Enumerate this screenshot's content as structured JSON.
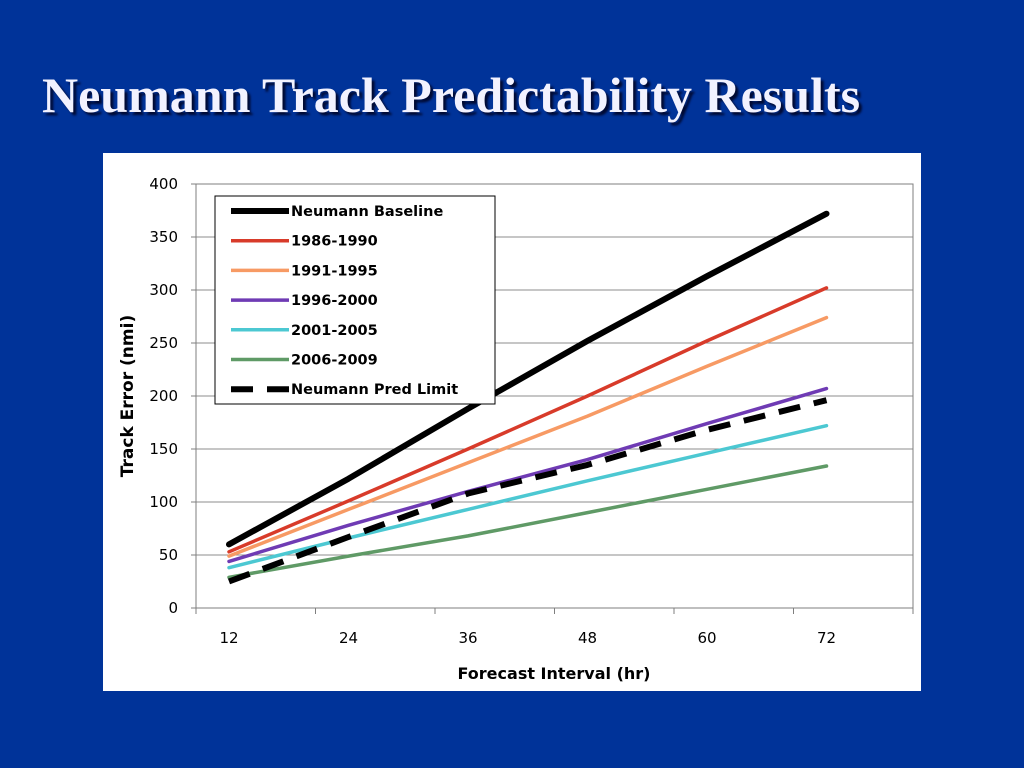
{
  "slide": {
    "title": "Neumann Track Predictability Results"
  },
  "colors": {
    "background": "#003399",
    "title_text": "#f2f2ff"
  },
  "chart_data": {
    "type": "line",
    "title": "",
    "xlabel": "Forecast Interval (hr)",
    "ylabel": "Track Error (nmi)",
    "x": [
      12,
      24,
      36,
      48,
      60,
      72
    ],
    "xticks": [
      "12",
      "24",
      "36",
      "48",
      "60",
      "72"
    ],
    "yticks": [
      0,
      50,
      100,
      150,
      200,
      250,
      300,
      350,
      400
    ],
    "ylim": [
      0,
      400
    ],
    "grid": true,
    "legend_position": "top-left",
    "series": [
      {
        "name": "Neumann Baseline",
        "color": "#000000",
        "dashed": false,
        "width": "heavy",
        "values": [
          60,
          122,
          188,
          252,
          313,
          372
        ]
      },
      {
        "name": "1986-1990",
        "color": "#d83b2a",
        "dashed": false,
        "width": "normal",
        "values": [
          53,
          101,
          150,
          200,
          252,
          302
        ]
      },
      {
        "name": "1991-1995",
        "color": "#f79a64",
        "dashed": false,
        "width": "normal",
        "values": [
          49,
          93,
          137,
          181,
          228,
          274
        ]
      },
      {
        "name": "1996-2000",
        "color": "#6f3bb4",
        "dashed": false,
        "width": "normal",
        "values": [
          44,
          78,
          110,
          140,
          174,
          207
        ]
      },
      {
        "name": "2001-2005",
        "color": "#4cc8d2",
        "dashed": false,
        "width": "normal",
        "values": [
          38,
          66,
          93,
          120,
          146,
          172
        ]
      },
      {
        "name": "2006-2009",
        "color": "#5f9a66",
        "dashed": false,
        "width": "normal",
        "values": [
          29,
          49,
          68,
          90,
          112,
          134
        ]
      },
      {
        "name": "Neumann Pred Limit",
        "color": "#000000",
        "dashed": true,
        "width": "heavy",
        "values": [
          25,
          67,
          108,
          135,
          168,
          196
        ]
      }
    ]
  }
}
